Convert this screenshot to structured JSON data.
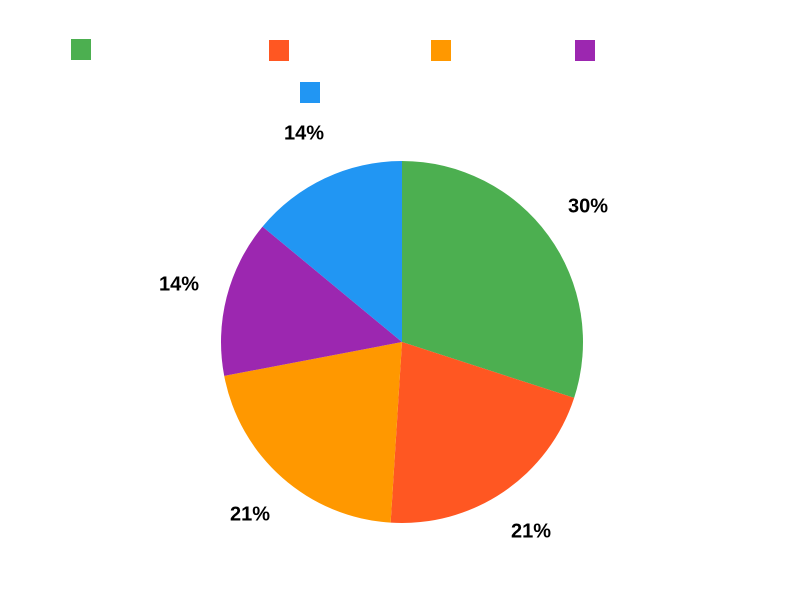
{
  "chart_data": {
    "type": "pie",
    "title": "",
    "unit": "%",
    "start_angle_deg": 0,
    "direction": "clockwise",
    "slice_label_position": "outside",
    "label_color": "#000000",
    "background_color": "#ffffff",
    "legend": {
      "position": "top",
      "labels_visible": false
    },
    "slices": [
      {
        "legend_label": "",
        "value": 30,
        "label": "30%",
        "color": "#4CAF50"
      },
      {
        "legend_label": "",
        "value": 21,
        "label": "21%",
        "color": "#FF5722"
      },
      {
        "legend_label": "",
        "value": 21,
        "label": "21%",
        "color": "#FF9800"
      },
      {
        "legend_label": "",
        "value": 14,
        "label": "14%",
        "color": "#9C27B0"
      },
      {
        "legend_label": "",
        "value": 14,
        "label": "14%",
        "color": "#2196F3"
      }
    ]
  }
}
